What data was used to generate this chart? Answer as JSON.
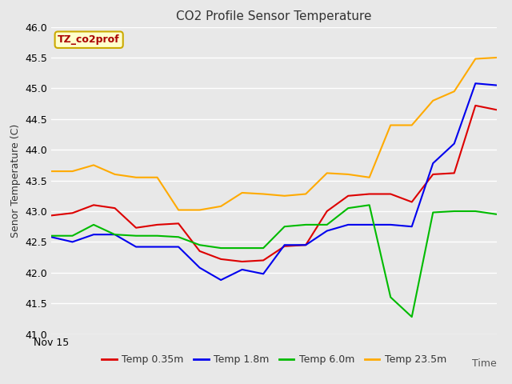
{
  "title": "CO2 Profile Sensor Temperature",
  "xlabel": "Time",
  "ylabel": "Senor Temperature (C)",
  "ylim": [
    41.0,
    46.0
  ],
  "yticks": [
    41.0,
    41.5,
    42.0,
    42.5,
    43.0,
    43.5,
    44.0,
    44.5,
    45.0,
    45.5,
    46.0
  ],
  "x_label_start": "Nov 15",
  "fig_facecolor": "#e8e8e8",
  "plot_facecolor": "#e8e8e8",
  "grid_color": "#ffffff",
  "legend_label": "TZ_co2prof",
  "legend_box_facecolor": "#ffffcc",
  "legend_box_edgecolor": "#ccaa00",
  "series": {
    "Temp 0.35m": {
      "color": "#dd0000",
      "data": [
        42.93,
        42.97,
        43.1,
        43.05,
        42.73,
        42.78,
        42.8,
        42.35,
        42.22,
        42.18,
        42.2,
        42.43,
        42.45,
        43.0,
        43.25,
        43.28,
        43.28,
        43.15,
        43.6,
        43.62,
        44.72,
        44.65
      ]
    },
    "Temp 1.8m": {
      "color": "#0000ee",
      "data": [
        42.58,
        42.5,
        42.62,
        42.62,
        42.42,
        42.42,
        42.42,
        42.08,
        41.88,
        42.05,
        41.98,
        42.45,
        42.45,
        42.68,
        42.78,
        42.78,
        42.78,
        42.75,
        43.78,
        44.1,
        45.08,
        45.05
      ]
    },
    "Temp 6.0m": {
      "color": "#00bb00",
      "data": [
        42.6,
        42.6,
        42.78,
        42.62,
        42.6,
        42.6,
        42.58,
        42.45,
        42.4,
        42.4,
        42.4,
        42.75,
        42.78,
        42.78,
        43.05,
        43.1,
        41.6,
        41.28,
        42.98,
        43.0,
        43.0,
        42.95
      ]
    },
    "Temp 23.5m": {
      "color": "#ffaa00",
      "data": [
        43.65,
        43.65,
        43.75,
        43.6,
        43.55,
        43.55,
        43.02,
        43.02,
        43.08,
        43.3,
        43.28,
        43.25,
        43.28,
        43.62,
        43.6,
        43.55,
        44.4,
        44.4,
        44.8,
        44.95,
        45.48,
        45.5
      ]
    }
  }
}
